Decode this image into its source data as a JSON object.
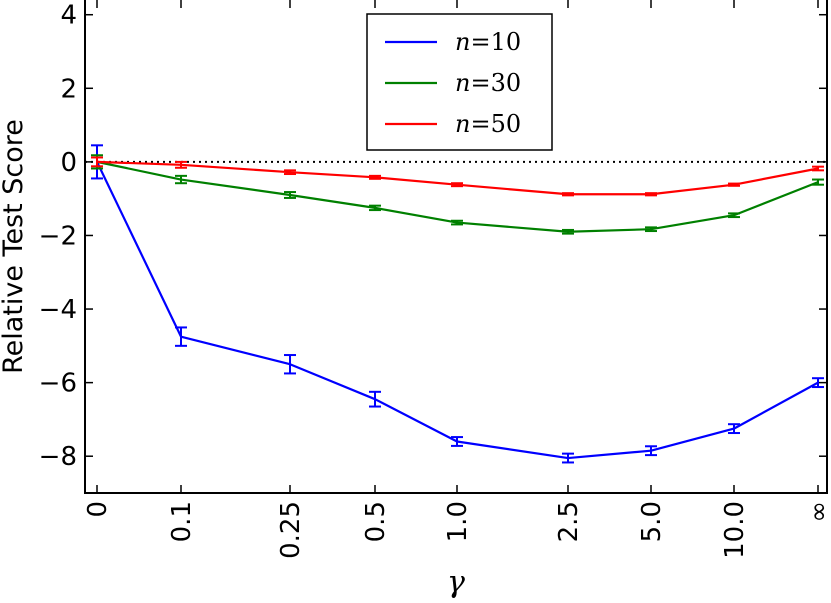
{
  "chart_data": {
    "type": "line",
    "xlabel": "γ",
    "ylabel": "Relative Test Score",
    "ylim": [
      -9,
      4.4
    ],
    "yticks": [
      4,
      2,
      0,
      -2,
      -4,
      -6,
      -8
    ],
    "ytick_labels": [
      "4",
      "2",
      "0",
      "−2",
      "−4",
      "−6",
      "−8"
    ],
    "x_categories": [
      "0",
      "0.1",
      "0.25",
      "0.5",
      "1.0",
      "2.5",
      "5.0",
      "10.0",
      "∞"
    ],
    "x_axis_note": "categorical, evenly spaced except a wider gap between 1.0 and 2.5",
    "reference_line": {
      "y": 0,
      "style": "dotted"
    },
    "grid": false,
    "legend_position": "top-center",
    "series": [
      {
        "name": "n=10",
        "legend_label": {
          "var": "n",
          "eq": "=",
          "val": "10"
        },
        "color": "#0000ff",
        "values": [
          0,
          -4.75,
          -5.5,
          -6.45,
          -7.6,
          -8.05,
          -7.85,
          -7.25,
          -6.0
        ],
        "errors": [
          0.45,
          0.25,
          0.25,
          0.2,
          0.12,
          0.12,
          0.12,
          0.12,
          0.12
        ]
      },
      {
        "name": "n=30",
        "legend_label": {
          "var": "n",
          "eq": "=",
          "val": "30"
        },
        "color": "#008000",
        "values": [
          0,
          -0.48,
          -0.9,
          -1.25,
          -1.65,
          -1.9,
          -1.83,
          -1.45,
          -0.55
        ],
        "errors": [
          0.18,
          0.1,
          0.08,
          0.06,
          0.05,
          0.05,
          0.05,
          0.05,
          0.07
        ]
      },
      {
        "name": "n=50",
        "legend_label": {
          "var": "n",
          "eq": "=",
          "val": "50"
        },
        "color": "#ff0000",
        "values": [
          0,
          -0.08,
          -0.28,
          -0.42,
          -0.62,
          -0.88,
          -0.88,
          -0.62,
          -0.18
        ],
        "errors": [
          0.12,
          0.08,
          0.05,
          0.04,
          0.04,
          0.03,
          0.03,
          0.03,
          0.05
        ]
      }
    ]
  }
}
